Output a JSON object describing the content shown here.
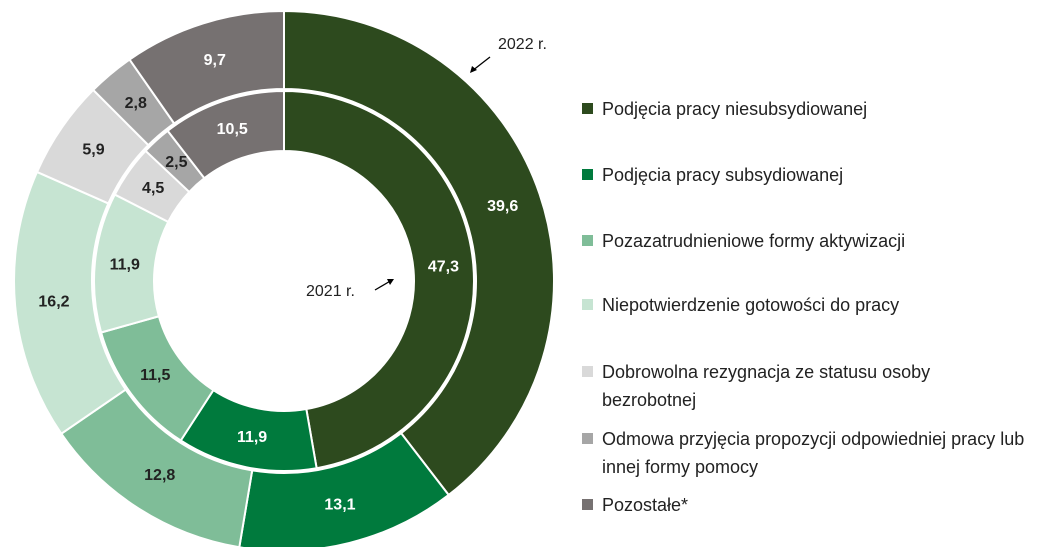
{
  "chart_data": {
    "type": "nested-donut",
    "categories": [
      "Podjęcia pracy niesubsydiowanej",
      "Podjęcia pracy subsydiowanej",
      "Pozazatrudnieniowe formy aktywizacji",
      "Niepotwierdzenie gotowości do pracy",
      "Dobrowolna rezygnacja ze statusu osoby bezrobotnej",
      "Odmowa przyjęcia propozycji odpowiedniej pracy lub innej formy pomocy",
      "Pozostałe*"
    ],
    "colors": [
      "#2d4a1e",
      "#007a3d",
      "#7fbd98",
      "#c6e4d2",
      "#d9d9d9",
      "#a6a6a6",
      "#767171"
    ],
    "series": [
      {
        "name": "2022 r.",
        "values": [
          39.6,
          13.1,
          12.8,
          16.2,
          5.9,
          2.8,
          9.7
        ],
        "value_labels": [
          "39,6",
          "13,1",
          "12,8",
          "16,2",
          "5,9",
          "2,8",
          "9,7"
        ]
      },
      {
        "name": "2021 r.",
        "values": [
          47.3,
          11.9,
          11.5,
          11.9,
          4.5,
          2.5,
          10.5
        ],
        "value_labels": [
          "47,3",
          "11,9",
          "11,5",
          "11,9",
          "4,5",
          "2,5",
          "10,5"
        ]
      }
    ]
  }
}
